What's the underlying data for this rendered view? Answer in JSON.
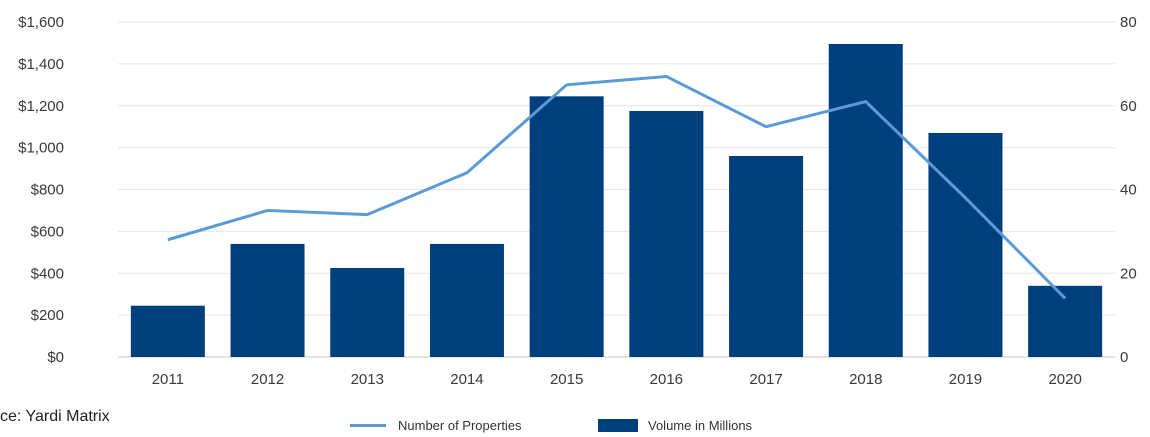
{
  "source_text": "ce: Yardi Matrix",
  "legend": {
    "line_label": "Number of Properties",
    "bar_label": "Volume in Millions"
  },
  "colors": {
    "bar": "#003f7d",
    "line": "#5b9bd5",
    "grid": "#e6e6e6",
    "axis": "#c8c8c8"
  },
  "chart_data": {
    "type": "bar",
    "categories": [
      "2011",
      "2012",
      "2013",
      "2014",
      "2015",
      "2016",
      "2017",
      "2018",
      "2019",
      "2020"
    ],
    "series": [
      {
        "name": "Volume in Millions",
        "type": "bar",
        "axis": "left",
        "values": [
          245,
          540,
          425,
          540,
          1245,
          1175,
          960,
          1495,
          1070,
          340
        ]
      },
      {
        "name": "Number of Properties",
        "type": "line",
        "axis": "right",
        "values": [
          28,
          35,
          34,
          44,
          65,
          67,
          55,
          61,
          38,
          14
        ]
      }
    ],
    "left_axis": {
      "ylim": [
        0,
        1600
      ],
      "ticks": [
        "$0",
        "$200",
        "$400",
        "$600",
        "$800",
        "$1,000",
        "$1,200",
        "$1,400",
        "$1,600"
      ]
    },
    "right_axis": {
      "ylim": [
        0,
        80
      ],
      "ticks": [
        "0",
        "20",
        "40",
        "60",
        "80"
      ]
    },
    "grid": true,
    "legend_position": "bottom"
  }
}
